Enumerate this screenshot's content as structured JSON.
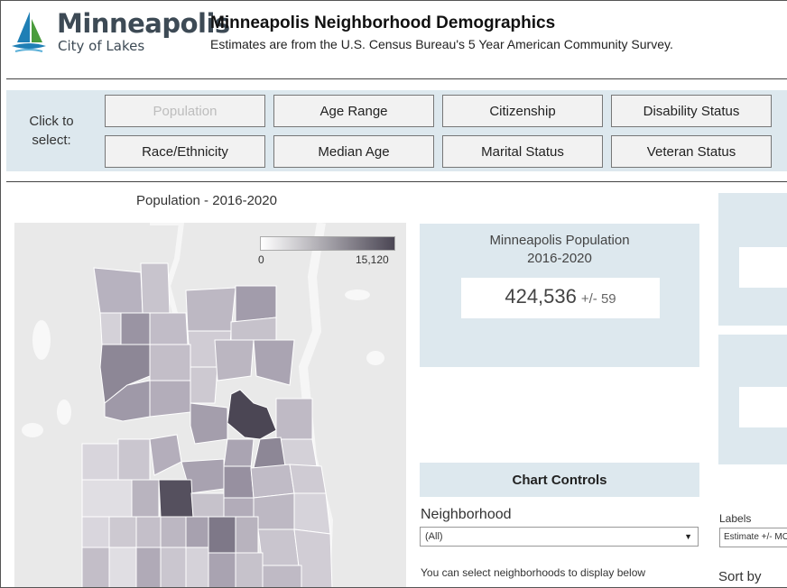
{
  "header": {
    "logo_name": "Minneapolis",
    "logo_tagline": "City of Lakes",
    "title": "Minneapolis Neighborhood Demographics",
    "subtitle": "Estimates are from the U.S. Census Bureau's 5 Year American Community Survey."
  },
  "selector": {
    "prompt": "Click to select:",
    "buttons": [
      {
        "label": "Population",
        "active": true
      },
      {
        "label": "Age Range",
        "active": false
      },
      {
        "label": "Citizenship",
        "active": false
      },
      {
        "label": "Disability Status",
        "active": false
      },
      {
        "label": "Race/Ethnicity",
        "active": false
      },
      {
        "label": "Median Age",
        "active": false
      },
      {
        "label": "Marital Status",
        "active": false
      },
      {
        "label": "Veteran Status",
        "active": false
      }
    ]
  },
  "map": {
    "title": "Population - 2016-2020",
    "legend_min": "0",
    "legend_max": "15,120",
    "color_low": "#ffffff",
    "color_high": "#4b4654"
  },
  "population_card": {
    "label": "Minneapolis Population\n2016-2020",
    "label_line1": "Minneapolis Population",
    "label_line2": "2016-2020",
    "value": "424,536",
    "moe": "+/- 59"
  },
  "chart_controls": {
    "header": "Chart Controls",
    "neighborhood_label": "Neighborhood",
    "neighborhood_value": "(All)",
    "help_text": "You can select neighborhoods to display below",
    "labels_label": "Labels",
    "labels_value": "Estimate +/- MOE",
    "sort_label": "Sort by"
  },
  "colors": {
    "band": "#dde8ee",
    "button_bg": "#f2f2f2",
    "map_bg": "#e9e9e9"
  }
}
